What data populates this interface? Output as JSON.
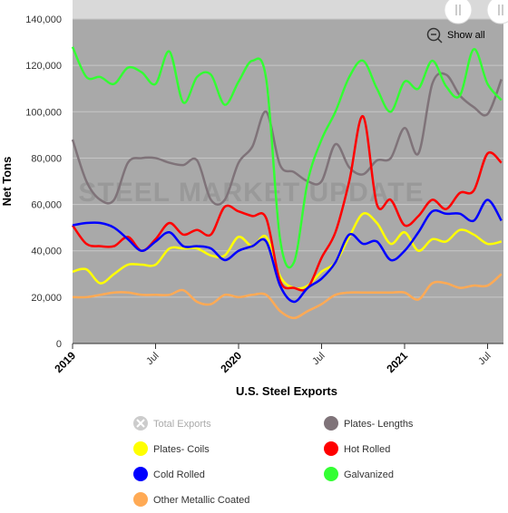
{
  "chart_data": {
    "type": "line",
    "x_axis_label": "U.S. Steel Exports",
    "y_axis_label": "Net Tons",
    "watermark": "STEEL MARKET UPDATE",
    "button": "Show all",
    "x": [
      "2019-01",
      "2019-02",
      "2019-03",
      "2019-04",
      "2019-05",
      "2019-06",
      "2019-07",
      "2019-08",
      "2019-09",
      "2019-10",
      "2019-11",
      "2019-12",
      "2020-01",
      "2020-02",
      "2020-03",
      "2020-04",
      "2020-05",
      "2020-06",
      "2020-07",
      "2020-08",
      "2020-09",
      "2020-10",
      "2020-11",
      "2020-12",
      "2021-01",
      "2021-02",
      "2021-03",
      "2021-04",
      "2021-05",
      "2021-06",
      "2021-07",
      "2021-08"
    ],
    "xticks": [
      {
        "value": "2019-01",
        "label": "2019"
      },
      {
        "value": "2019-07",
        "label": "Jul"
      },
      {
        "value": "2020-01",
        "label": "2020"
      },
      {
        "value": "2020-07",
        "label": "Jul"
      },
      {
        "value": "2021-01",
        "label": "2021"
      },
      {
        "value": "2021-07",
        "label": "Jul"
      }
    ],
    "ylim": [
      0,
      140000
    ],
    "yticks": [
      0,
      {
        "value": 20000,
        "label": "20,000"
      },
      {
        "value": 40000,
        "label": "40,000"
      },
      {
        "value": 60000,
        "label": "60,000"
      },
      {
        "value": 80000,
        "label": "80,000"
      },
      {
        "value": 100000,
        "label": "100,000"
      },
      {
        "value": 120000,
        "label": "120,000"
      },
      {
        "value": 140000,
        "label": "140,000"
      }
    ],
    "grid": true,
    "series": [
      {
        "name": "Total Exports",
        "color": "#cccccc",
        "visible": false,
        "values": [
          null,
          null,
          null,
          null,
          null,
          null,
          null,
          null,
          null,
          null,
          null,
          null,
          null,
          null,
          null,
          null,
          null,
          null,
          null,
          null,
          null,
          null,
          null,
          null,
          null,
          null,
          null,
          null,
          null,
          null,
          null,
          null
        ]
      },
      {
        "name": "Plates- Lengths",
        "color": "#7f7379",
        "visible": true,
        "values": [
          88000,
          70000,
          62000,
          62000,
          78000,
          80000,
          80000,
          78000,
          77000,
          79000,
          62000,
          62000,
          78000,
          85000,
          100000,
          77000,
          74000,
          70000,
          70000,
          86000,
          76000,
          73000,
          79000,
          80000,
          93000,
          82000,
          112000,
          116000,
          107000,
          102000,
          99000,
          114000
        ]
      },
      {
        "name": "Plates- Coils",
        "color": "#ffff00",
        "visible": true,
        "values": [
          31000,
          32000,
          26000,
          30000,
          34000,
          34000,
          34000,
          41000,
          41000,
          41000,
          38000,
          38000,
          46000,
          42000,
          46000,
          29000,
          24000,
          25000,
          31000,
          35000,
          46000,
          56000,
          52000,
          43000,
          48000,
          40000,
          45000,
          44000,
          49000,
          47000,
          43000,
          44000
        ]
      },
      {
        "name": "Hot Rolled",
        "color": "#ff0000",
        "visible": true,
        "values": [
          51000,
          43000,
          42000,
          42000,
          46000,
          40000,
          45000,
          52000,
          47000,
          49000,
          47000,
          59000,
          57000,
          55000,
          54000,
          27000,
          24000,
          24000,
          37000,
          48000,
          70000,
          98000,
          60000,
          62000,
          51000,
          55000,
          62000,
          58000,
          65000,
          66000,
          82000,
          78000
        ]
      },
      {
        "name": "Cold Rolled",
        "color": "#0000ff",
        "visible": true,
        "values": [
          51000,
          52000,
          52000,
          50000,
          45000,
          40000,
          44000,
          48000,
          42000,
          42000,
          41000,
          36000,
          40000,
          42000,
          44000,
          25000,
          18000,
          24000,
          28000,
          35000,
          47000,
          43000,
          44000,
          36000,
          40000,
          48000,
          57000,
          56000,
          56000,
          53000,
          62000,
          53000
        ]
      },
      {
        "name": "Galvanized",
        "color": "#33ff33",
        "visible": true,
        "values": [
          128000,
          115000,
          115000,
          112000,
          119000,
          117000,
          112000,
          126000,
          104000,
          115000,
          116000,
          103000,
          113000,
          122000,
          114000,
          45000,
          35000,
          70000,
          88000,
          100000,
          115000,
          122000,
          110000,
          100000,
          113000,
          110000,
          122000,
          111000,
          107000,
          127000,
          112000,
          105000
        ]
      },
      {
        "name": "Other Metallic Coated",
        "color": "#ffaa55",
        "visible": true,
        "values": [
          20000,
          20000,
          21000,
          22000,
          22000,
          21000,
          21000,
          21000,
          23000,
          18000,
          17000,
          21000,
          20000,
          21000,
          21000,
          14000,
          11000,
          14000,
          17000,
          21000,
          22000,
          22000,
          22000,
          22000,
          22000,
          19000,
          26000,
          26000,
          24000,
          25000,
          25000,
          30000
        ]
      }
    ]
  }
}
